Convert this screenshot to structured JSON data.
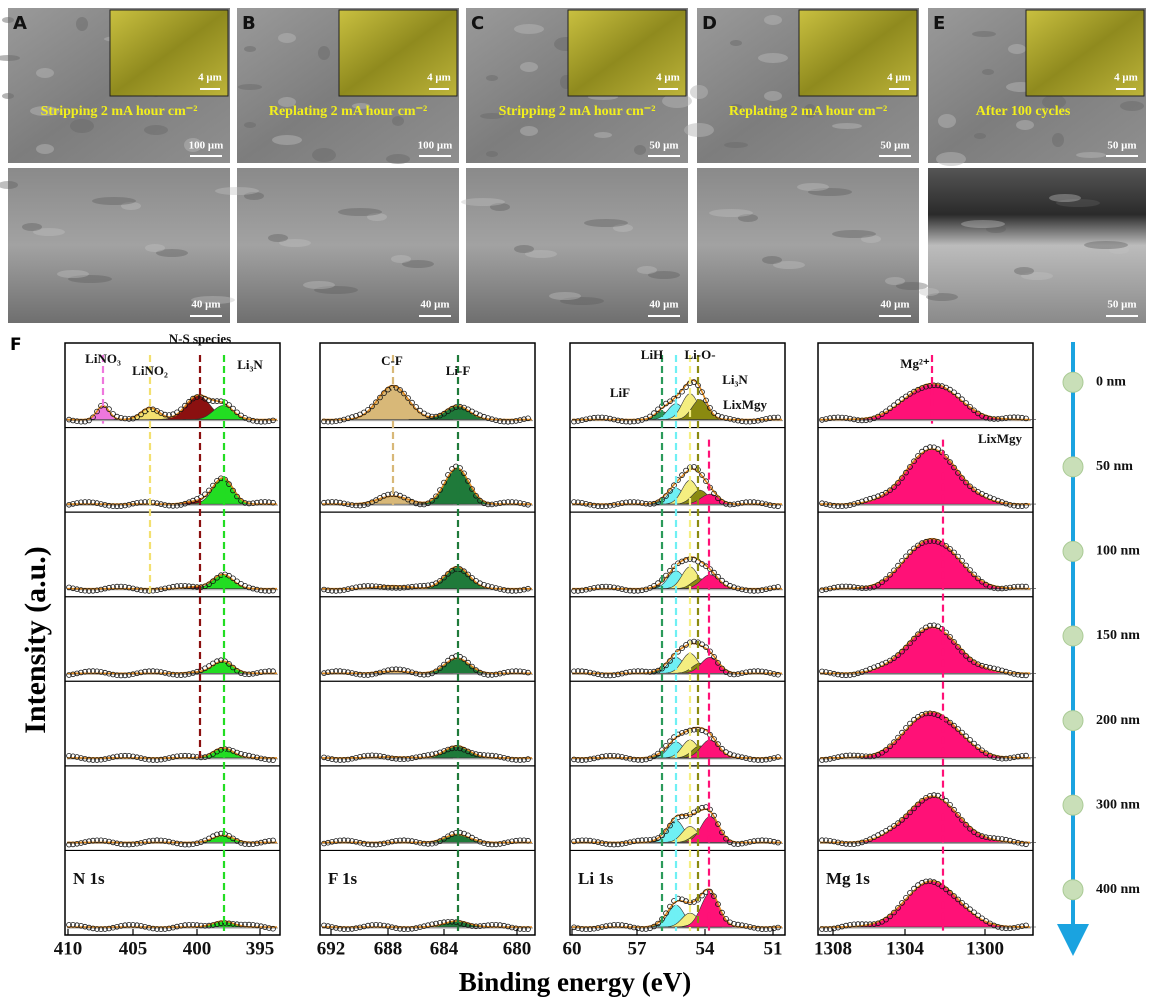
{
  "sem": [
    {
      "label": "A",
      "caption": "Stripping 2 mA hour cm⁻²",
      "inset_scale": "4 μm",
      "top_scale": "100 μm",
      "bottom_scale": "40 μm"
    },
    {
      "label": "B",
      "caption": "Replating 2 mA hour cm⁻²",
      "inset_scale": "4 μm",
      "top_scale": "100 μm",
      "bottom_scale": "40 μm"
    },
    {
      "label": "C",
      "caption": "Stripping 2 mA hour cm⁻²",
      "inset_scale": "4 μm",
      "top_scale": "50 μm",
      "bottom_scale": "40 μm"
    },
    {
      "label": "D",
      "caption": "Replating 2 mA hour cm⁻²",
      "inset_scale": "4 μm",
      "top_scale": "50 μm",
      "bottom_scale": "40 μm"
    },
    {
      "label": "E",
      "caption": "After 100 cycles",
      "inset_scale": "4 μm",
      "top_scale": "50 μm",
      "bottom_scale": "50 μm"
    }
  ],
  "xps_label": "F",
  "xps": [
    {
      "element": "N 1s",
      "xticks": [
        "410",
        "405",
        "400",
        "395"
      ],
      "peaks": [
        "LiNO₃",
        "LiNO₂",
        "N-S species",
        "Li₃N"
      ]
    },
    {
      "element": "F 1s",
      "xticks": [
        "692",
        "688",
        "684",
        "680"
      ],
      "peaks": [
        "C-F",
        "Li-F"
      ]
    },
    {
      "element": "Li 1s",
      "xticks": [
        "60",
        "57",
        "54",
        "51"
      ],
      "peaks": [
        "LiH",
        "Li-O-",
        "LiF",
        "Li₃N",
        "LixMgy"
      ]
    },
    {
      "element": "Mg 1s",
      "xticks": [
        "1308",
        "1304",
        "1300"
      ],
      "peaks": [
        "Mg²⁺",
        "LixMgy"
      ]
    }
  ],
  "y_axis_title": "Intensity (a.u.)",
  "x_axis_title": "Binding energy (eV)",
  "depths": [
    "0 nm",
    "50 nm",
    "100 nm",
    "150 nm",
    "200 nm",
    "300 nm",
    "400 nm"
  ]
}
